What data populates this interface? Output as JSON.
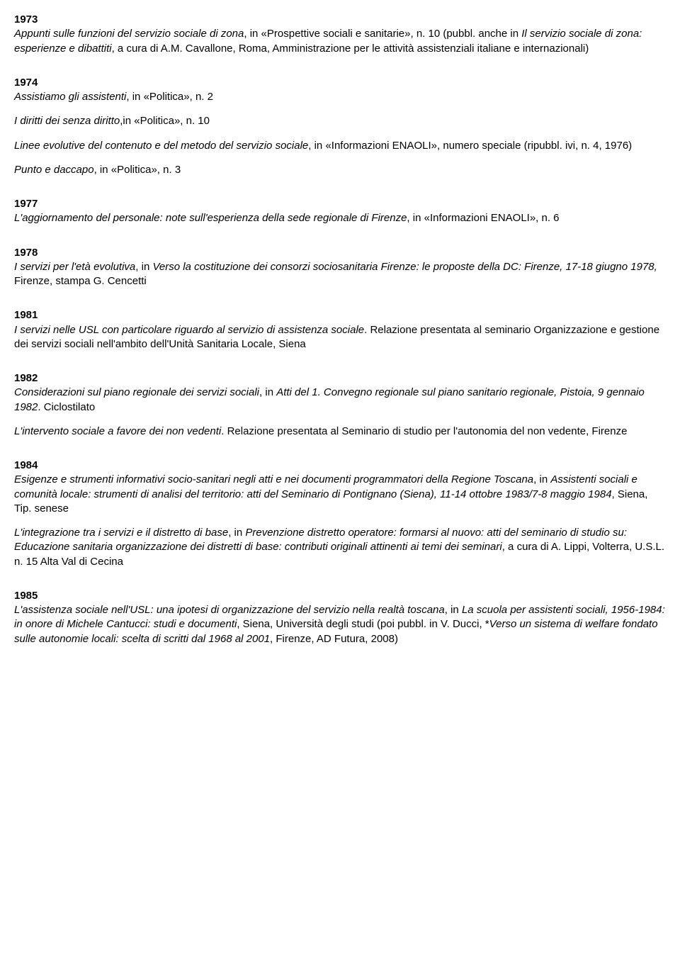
{
  "sections": [
    {
      "year": "1973",
      "entries": [
        {
          "html": "<span class='italic'>Appunti sulle funzioni del servizio sociale di zona</span>, in «Prospettive sociali e sanitarie», n. 10 (pubbl. anche in <span class='italic'>Il servizio sociale di zona: esperienze e dibattiti</span>, a cura di A.M. Cavallone, Roma, Amministrazione per le attività assistenziali italiane e internazionali)"
        }
      ]
    },
    {
      "year": "1974",
      "entries": [
        {
          "html": "<span class='italic'>Assistiamo gli assistenti</span>, in «Politica», n. 2"
        },
        {
          "html": "<span class='italic'>I diritti dei senza diritto</span>,in «Politica», n. 10"
        },
        {
          "html": "<span class='italic'>Linee evolutive del contenuto e del metodo del servizio sociale</span>, in «Informazioni ENAOLI», numero speciale (ripubbl. ivi, n. 4, 1976)"
        },
        {
          "html": "<span class='italic'>Punto e daccapo</span>, in «Politica», n. 3"
        }
      ]
    },
    {
      "year": "1977",
      "entries": [
        {
          "html": "<span class='italic'>L'aggiornamento del personale: note sull'esperienza della sede regionale di Firenze</span>, in «Informazioni ENAOLI», n. 6"
        }
      ]
    },
    {
      "year": "1978",
      "entries": [
        {
          "html": "<span class='italic'>I servizi per l'età evolutiva</span>, in <span class='italic'>Verso la costituzione dei consorzi sociosanitaria Firenze: le proposte della DC: Firenze, 17-18 giugno 1978,</span> Firenze, stampa G. Cencetti"
        }
      ]
    },
    {
      "year": "1981",
      "entries": [
        {
          "html": "<span class='italic'>I servizi nelle USL con particolare riguardo al servizio di assistenza sociale</span>. Relazione presentata al seminario Organizzazione e gestione dei servizi sociali nell'ambito dell'Unità Sanitaria Locale, Siena"
        }
      ]
    },
    {
      "year": "1982",
      "entries": [
        {
          "html": "<span class='italic'>Considerazioni sul piano regionale dei servizi sociali</span>, in <span class='italic'>Atti del 1. Convegno regionale sul piano sanitario regionale, Pistoia, 9 gennaio 1982</span>. Ciclostilato"
        },
        {
          "html": "<span class='italic'>L'intervento sociale a favore dei non vedenti</span>. Relazione presentata al Seminario di studio per l'autonomia del non vedente, Firenze"
        }
      ]
    },
    {
      "year": "1984",
      "entries": [
        {
          "html": "<span class='italic'>Esigenze e strumenti informativi socio-sanitari negli atti e nei documenti programmatori della Regione Toscana</span>, in <span class='italic'>Assistenti sociali e comunità locale: strumenti di analisi del territorio: atti del Seminario di Pontignano (Siena), 11-14 ottobre 1983/7-8 maggio 1984</span>, Siena, Tip. senese"
        },
        {
          "html": "<span class='italic'>L'integrazione tra i servizi e il distretto di base</span>, in <span class='italic'>Prevenzione distretto operatore: formarsi al nuovo: atti del seminario di studio su: Educazione sanitaria organizzazione dei distretti di base: contributi originali attinenti ai temi dei seminari</span>, a cura di A. Lippi, Volterra, U.S.L. n. 15 Alta Val di Cecina"
        }
      ]
    },
    {
      "year": "1985",
      "entries": [
        {
          "html": "<span class='italic'>L'assistenza sociale nell'USL: una ipotesi di organizzazione del servizio nella realtà toscana</span>, in <span class='italic'>La scuola per assistenti sociali, 1956-1984: in onore di Michele Cantucci: studi e documenti</span>, Siena, Università degli studi (poi pubbl. in V. Ducci, *<span class='italic'>Verso un sistema di welfare fondato sulle autonomie locali: scelta di scritti dal 1968 al 2001</span>, Firenze, AD Futura, 2008)"
        }
      ]
    }
  ]
}
